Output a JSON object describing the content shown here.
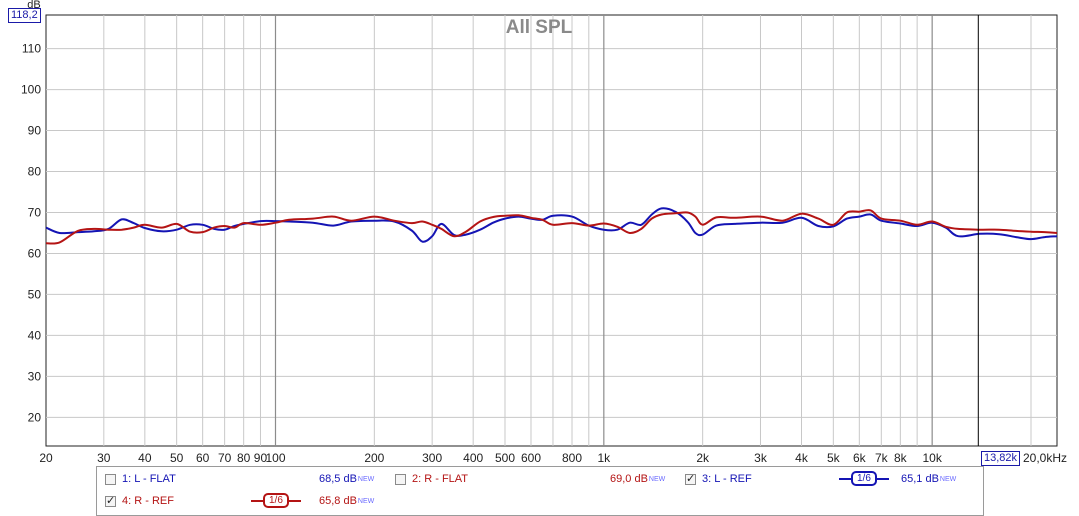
{
  "chart_data": {
    "type": "line",
    "title": "All SPL",
    "ylabel": "dB",
    "xlabel": "",
    "x_scale": "log",
    "xlim": [
      20,
      24000
    ],
    "ylim": [
      13,
      118.2
    ],
    "y_ticks": [
      "20",
      "30",
      "40",
      "50",
      "60",
      "70",
      "80",
      "90",
      "100",
      "110"
    ],
    "x_ticks": [
      {
        "f": 20,
        "label": "20"
      },
      {
        "f": 30,
        "label": "30"
      },
      {
        "f": 40,
        "label": "40"
      },
      {
        "f": 50,
        "label": "50"
      },
      {
        "f": 60,
        "label": "60"
      },
      {
        "f": 70,
        "label": "70"
      },
      {
        "f": 80,
        "label": "80"
      },
      {
        "f": 90,
        "label": "90"
      },
      {
        "f": 100,
        "label": "100"
      },
      {
        "f": 200,
        "label": "200"
      },
      {
        "f": 300,
        "label": "300"
      },
      {
        "f": 400,
        "label": "400"
      },
      {
        "f": 500,
        "label": "500"
      },
      {
        "f": 600,
        "label": "600"
      },
      {
        "f": 800,
        "label": "800"
      },
      {
        "f": 1000,
        "label": "1k"
      },
      {
        "f": 2000,
        "label": "2k"
      },
      {
        "f": 3000,
        "label": "3k"
      },
      {
        "f": 4000,
        "label": "4k"
      },
      {
        "f": 5000,
        "label": "5k"
      },
      {
        "f": 6000,
        "label": "6k"
      },
      {
        "f": 7000,
        "label": "7k"
      },
      {
        "f": 8000,
        "label": "8k"
      },
      {
        "f": 10000,
        "label": "10k"
      },
      {
        "f": 20000,
        "label": "20,0kHz"
      }
    ],
    "grid": true,
    "cursor": {
      "x": 13820,
      "x_label": "13,82k",
      "y_label": "118,2"
    },
    "series": [
      {
        "name": "3: L - REF",
        "color": "#1414b4",
        "x": [
          20,
          22,
          25,
          28,
          31,
          34,
          37,
          40,
          45,
          50,
          55,
          60,
          65,
          70,
          75,
          80,
          90,
          100,
          110,
          130,
          150,
          170,
          200,
          230,
          260,
          280,
          300,
          320,
          350,
          380,
          420,
          460,
          500,
          550,
          600,
          650,
          700,
          800,
          900,
          1000,
          1100,
          1200,
          1300,
          1400,
          1500,
          1650,
          1800,
          1900,
          2000,
          2200,
          2500,
          3000,
          3500,
          4000,
          4500,
          5000,
          5500,
          6000,
          6500,
          7000,
          8000,
          9000,
          10000,
          11000,
          12000,
          14000,
          16000,
          18000,
          20000,
          22000,
          24000
        ],
        "y": [
          66.3,
          65.0,
          65.2,
          65.4,
          66.0,
          68.3,
          67.4,
          66.2,
          65.4,
          65.8,
          67.0,
          67.0,
          66.0,
          65.8,
          66.7,
          67.2,
          67.9,
          67.9,
          67.8,
          67.5,
          66.8,
          67.8,
          68.0,
          67.8,
          65.6,
          62.9,
          64.2,
          67.2,
          64.5,
          64.6,
          65.8,
          67.5,
          68.5,
          69.0,
          68.5,
          68.2,
          69.2,
          69.0,
          66.8,
          65.8,
          65.8,
          67.5,
          67.0,
          69.5,
          71.0,
          70.2,
          67.7,
          65.0,
          64.6,
          66.8,
          67.2,
          67.5,
          67.5,
          68.7,
          66.7,
          66.6,
          68.5,
          69.0,
          69.5,
          68.0,
          67.3,
          66.7,
          67.5,
          66.3,
          64.2,
          64.8,
          64.7,
          64.0,
          63.5,
          64.0,
          64.2
        ]
      },
      {
        "name": "4: R - REF",
        "color": "#b41414",
        "x": [
          20,
          22,
          25,
          28,
          31,
          34,
          37,
          40,
          45,
          50,
          55,
          60,
          65,
          70,
          75,
          80,
          90,
          100,
          110,
          130,
          150,
          170,
          200,
          230,
          260,
          280,
          300,
          320,
          350,
          380,
          420,
          460,
          500,
          550,
          600,
          650,
          700,
          800,
          900,
          1000,
          1100,
          1200,
          1300,
          1400,
          1500,
          1650,
          1800,
          1900,
          2000,
          2200,
          2500,
          3000,
          3500,
          4000,
          4500,
          5000,
          5500,
          6000,
          6500,
          7000,
          8000,
          9000,
          10000,
          11000,
          12000,
          14000,
          16000,
          18000,
          20000,
          22000,
          24000
        ],
        "y": [
          62.5,
          62.7,
          65.5,
          66.0,
          65.8,
          65.8,
          66.3,
          67.0,
          66.3,
          67.2,
          65.3,
          65.2,
          66.3,
          66.7,
          66.3,
          67.4,
          67.0,
          67.5,
          68.2,
          68.5,
          69.0,
          68.0,
          69.0,
          68.0,
          67.4,
          67.8,
          67.0,
          66.0,
          64.2,
          65.3,
          67.8,
          68.9,
          69.2,
          69.3,
          68.7,
          68.2,
          67.0,
          67.4,
          66.8,
          67.3,
          66.5,
          65.0,
          66.0,
          68.5,
          69.5,
          69.8,
          70.0,
          69.0,
          67.0,
          68.8,
          68.7,
          69.0,
          68.0,
          69.7,
          68.5,
          67.0,
          70.0,
          70.2,
          70.5,
          68.5,
          68.0,
          67.0,
          67.8,
          66.5,
          66.0,
          65.8,
          65.8,
          65.5,
          65.3,
          65.2,
          65.0
        ]
      }
    ]
  },
  "legend": {
    "items": [
      {
        "label": "1: L - FLAT",
        "value": "68,5 dB",
        "tag": "NEW",
        "checked": false,
        "color": "#1414b4"
      },
      {
        "label": "2: R - FLAT",
        "value": "69,0 dB",
        "tag": "NEW",
        "checked": false,
        "color": "#b41414"
      },
      {
        "label": "3: L - REF",
        "value": "65,1 dB",
        "tag": "NEW",
        "checked": true,
        "color": "#1414b4",
        "smoothing": "1/6"
      },
      {
        "label": "4: R - REF",
        "value": "65,8 dB",
        "tag": "NEW",
        "checked": true,
        "color": "#b41414",
        "smoothing": "1/6"
      }
    ]
  }
}
